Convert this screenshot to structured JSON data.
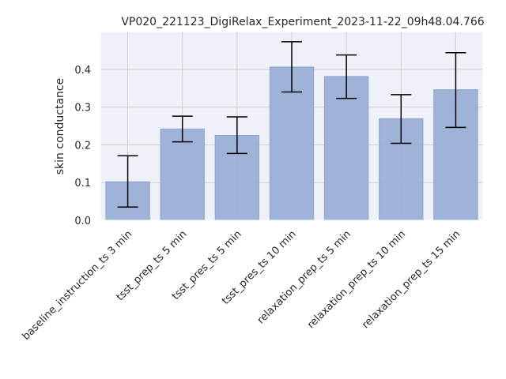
{
  "chart_data": {
    "type": "bar",
    "title": "VP020_221123_DigiRelax_Experiment_2023-11-22_09h48.04.766",
    "xlabel": "",
    "ylabel": "skin conductance",
    "ylim": [
      0,
      0.5
    ],
    "yticks": [
      0.0,
      0.1,
      0.2,
      0.3,
      0.4
    ],
    "ytick_labels": [
      "0.0",
      "0.1",
      "0.2",
      "0.3",
      "0.4"
    ],
    "grid": true,
    "categories": [
      "baseline_instruction_ts 3 min",
      "tsst_prep_ts 5 min",
      "tsst_pres_ts 5 min",
      "tsst_pres_ts 10 min",
      "relaxation_prep_ts 5 min",
      "relaxation_prep_ts 10 min",
      "relaxation_prep_ts 15 min"
    ],
    "values": [
      0.102,
      0.242,
      0.225,
      0.406,
      0.381,
      0.269,
      0.346
    ],
    "error_low": [
      0.035,
      0.208,
      0.177,
      0.34,
      0.323,
      0.204,
      0.246
    ],
    "error_high": [
      0.171,
      0.276,
      0.274,
      0.473,
      0.438,
      0.333,
      0.444
    ],
    "colors": {
      "bar": "#9aaed5",
      "bar_edge": "#8fa3cc",
      "plot_bg": "#eef1f7",
      "grid": "#d0d0d0",
      "error": "#000000"
    }
  }
}
